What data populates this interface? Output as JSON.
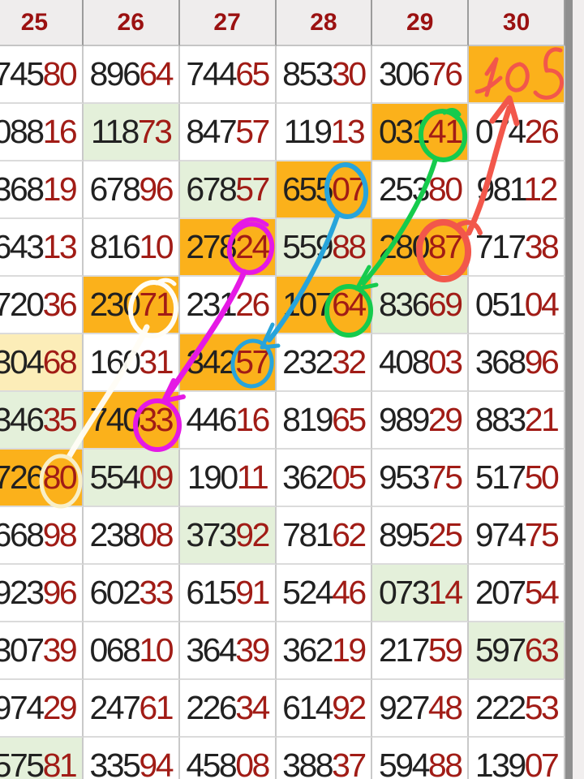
{
  "palette": {
    "amber_highlight": "#FBB11B",
    "green_highlight": "#E4F0DA",
    "yellow_highlight": "#FCEDB8",
    "header_bg": "#EFEDED",
    "digit_black": "#212121",
    "digit_red": "#A11C16",
    "header_red": "#9B1111",
    "gutter": "#F1EEEE"
  },
  "header": {
    "columns": [
      "25",
      "26",
      "27",
      "28",
      "29",
      "30"
    ]
  },
  "grid": {
    "black_digits": 3,
    "rows": [
      [
        {
          "v": "74580"
        },
        {
          "v": "89664"
        },
        {
          "v": "74465"
        },
        {
          "v": "85330"
        },
        {
          "v": "30676"
        },
        {
          "v": "",
          "hl": "amber",
          "note": "105"
        }
      ],
      [
        {
          "v": "08816"
        },
        {
          "v": "11873",
          "hl": "green"
        },
        {
          "v": "84757"
        },
        {
          "v": "11913"
        },
        {
          "v": "03141",
          "hl": "amber"
        },
        {
          "v": "07426"
        }
      ],
      [
        {
          "v": "36819"
        },
        {
          "v": "67896"
        },
        {
          "v": "67857",
          "hl": "green"
        },
        {
          "v": "65507",
          "hl": "amber"
        },
        {
          "v": "25380"
        },
        {
          "v": "98112"
        }
      ],
      [
        {
          "v": "64313"
        },
        {
          "v": "81610"
        },
        {
          "v": "27824",
          "hl": "amber"
        },
        {
          "v": "55988",
          "hl": "green"
        },
        {
          "v": "28087",
          "hl": "amber"
        },
        {
          "v": "71738"
        }
      ],
      [
        {
          "v": "72036"
        },
        {
          "v": "23071",
          "hl": "amber"
        },
        {
          "v": "23126"
        },
        {
          "v": "10764",
          "hl": "amber"
        },
        {
          "v": "83669",
          "hl": "green"
        },
        {
          "v": "05104"
        }
      ],
      [
        {
          "v": "30468",
          "hl": "yellow"
        },
        {
          "v": "16031"
        },
        {
          "v": "34257",
          "hl": "amber"
        },
        {
          "v": "23232"
        },
        {
          "v": "40803"
        },
        {
          "v": "36896"
        }
      ],
      [
        {
          "v": "34635",
          "hl": "green"
        },
        {
          "v": "74033",
          "hl": "amber"
        },
        {
          "v": "44616"
        },
        {
          "v": "81965"
        },
        {
          "v": "98929"
        },
        {
          "v": "88321"
        }
      ],
      [
        {
          "v": "72680",
          "hl": "amber"
        },
        {
          "v": "55409",
          "hl": "green"
        },
        {
          "v": "19011"
        },
        {
          "v": "36205"
        },
        {
          "v": "95375"
        },
        {
          "v": "51750"
        }
      ],
      [
        {
          "v": "66898"
        },
        {
          "v": "23808"
        },
        {
          "v": "37392",
          "hl": "green"
        },
        {
          "v": "78162"
        },
        {
          "v": "89525"
        },
        {
          "v": "97475"
        }
      ],
      [
        {
          "v": "92396"
        },
        {
          "v": "60233"
        },
        {
          "v": "61591"
        },
        {
          "v": "52446"
        },
        {
          "v": "07314",
          "hl": "green"
        },
        {
          "v": "20754"
        }
      ],
      [
        {
          "v": "30739"
        },
        {
          "v": "06810"
        },
        {
          "v": "36439"
        },
        {
          "v": "36219"
        },
        {
          "v": "21759"
        },
        {
          "v": "59763",
          "hl": "green"
        }
      ],
      [
        {
          "v": "97429"
        },
        {
          "v": "24761"
        },
        {
          "v": "22634"
        },
        {
          "v": "61492"
        },
        {
          "v": "92748"
        },
        {
          "v": "22253"
        }
      ],
      [
        {
          "v": "57581",
          "hl": "green"
        },
        {
          "v": "33594"
        },
        {
          "v": "45808"
        },
        {
          "v": "38837"
        },
        {
          "v": "59488"
        },
        {
          "v": "13907"
        }
      ]
    ]
  },
  "annotations": {
    "handwritten_text": "105",
    "colors": {
      "red": "#F2574B",
      "green": "#15CB4D",
      "cyan": "#27A4DB",
      "magenta": "#E519E5",
      "white": "#FFFDF6",
      "cream": "#F8EFC8"
    },
    "marks": [
      {
        "color": "red",
        "circled": "87",
        "circled_in": "28087",
        "arrow_points_to": "105"
      },
      {
        "color": "green",
        "circled": "41",
        "circled_in": "03141",
        "line_to_circled": "64",
        "line_to_in": "10764"
      },
      {
        "color": "cyan",
        "circled": "07",
        "circled_in": "65507",
        "line_to_circled": "57",
        "line_to_in": "34257"
      },
      {
        "color": "magenta",
        "circled": "24",
        "circled_in": "27824",
        "line_to_circled": "33",
        "line_to_in": "74033"
      },
      {
        "color": "white",
        "circled": "71",
        "circled_in": "23071",
        "line_to_circled": "80",
        "line_to_in": "72680"
      }
    ]
  }
}
